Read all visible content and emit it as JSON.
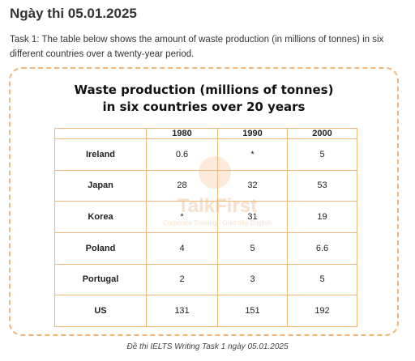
{
  "header": {
    "date_heading": "Ngày thi 05.01.2025",
    "task_text": "Task 1: The table below shows the amount of waste production (in millions of tonnes) in six different countries over a twenty-year period."
  },
  "chart_data": {
    "type": "table",
    "title_line1": "Waste production (millions of tonnes)",
    "title_line2": "in six countries over 20 years",
    "columns": [
      "",
      "1980",
      "1990",
      "2000"
    ],
    "rows": [
      [
        "Ireland",
        "0.6",
        "*",
        "5"
      ],
      [
        "Japan",
        "28",
        "32",
        "53"
      ],
      [
        "Korea",
        "*",
        "31",
        "19"
      ],
      [
        "Poland",
        "4",
        "5",
        "6.6"
      ],
      [
        "Portugal",
        "2",
        "3",
        "5"
      ],
      [
        "US",
        "131",
        "151",
        "192"
      ]
    ]
  },
  "watermark": {
    "name": "TalkFirst",
    "tagline": "Corporate Training · Giao tiếp English"
  },
  "footer": {
    "caption": "Đề thi IELTS Writing Task 1 ngày 05.01.2025"
  },
  "colors": {
    "border_accent": "#f0b77b"
  }
}
